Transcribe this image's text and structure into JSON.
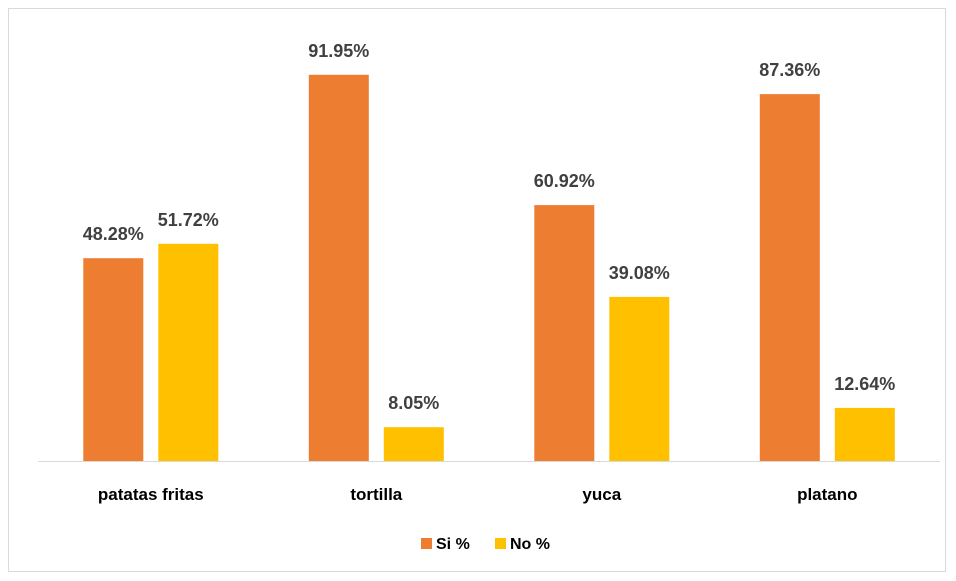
{
  "chart_data": {
    "type": "bar",
    "title": "",
    "xlabel": "",
    "ylabel": "",
    "categories": [
      "patatas fritas",
      "tortilla",
      "yuca",
      "platano"
    ],
    "series": [
      {
        "name": "Si %",
        "color": "#ED7D31",
        "values": [
          48.28,
          91.95,
          60.92,
          87.36
        ],
        "labels": [
          "48.28%",
          "91.95%",
          "60.92%",
          "87.36%"
        ]
      },
      {
        "name": "No %",
        "color": "#FFC000",
        "values": [
          51.72,
          8.05,
          39.08,
          12.64
        ],
        "labels": [
          "51.72%",
          "8.05%",
          "39.08%",
          "12.64%"
        ]
      }
    ],
    "ylim": [
      0,
      100
    ],
    "grid": false,
    "legend": "bottom",
    "axis_color": "#d9d9d9"
  }
}
